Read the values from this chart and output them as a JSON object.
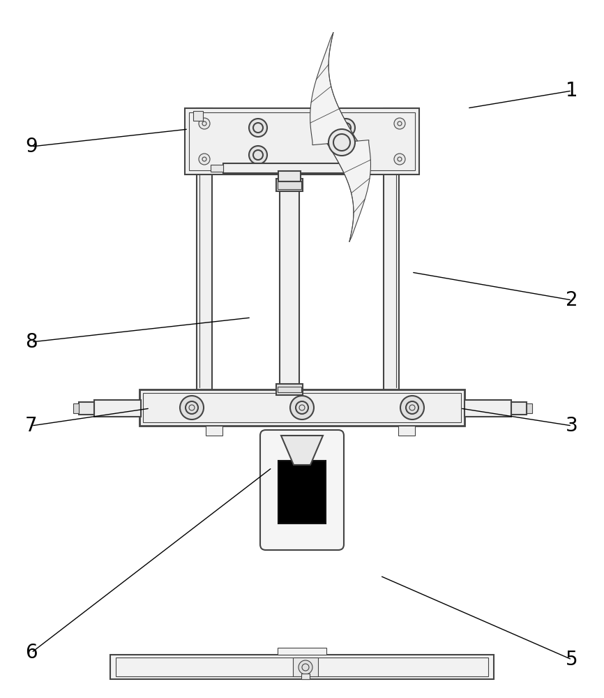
{
  "bg_color": "#ffffff",
  "line_color": "#444444",
  "figsize": [
    8.66,
    10.0
  ],
  "dpi": 100,
  "labels_info": [
    [
      "1",
      820,
      870,
      670,
      845
    ],
    [
      "2",
      820,
      570,
      590,
      610
    ],
    [
      "3",
      820,
      390,
      660,
      415
    ],
    [
      "5",
      820,
      55,
      545,
      175
    ],
    [
      "6",
      45,
      65,
      390,
      330
    ],
    [
      "7",
      45,
      390,
      215,
      415
    ],
    [
      "8",
      45,
      510,
      360,
      545
    ],
    [
      "9",
      45,
      790,
      270,
      815
    ]
  ]
}
